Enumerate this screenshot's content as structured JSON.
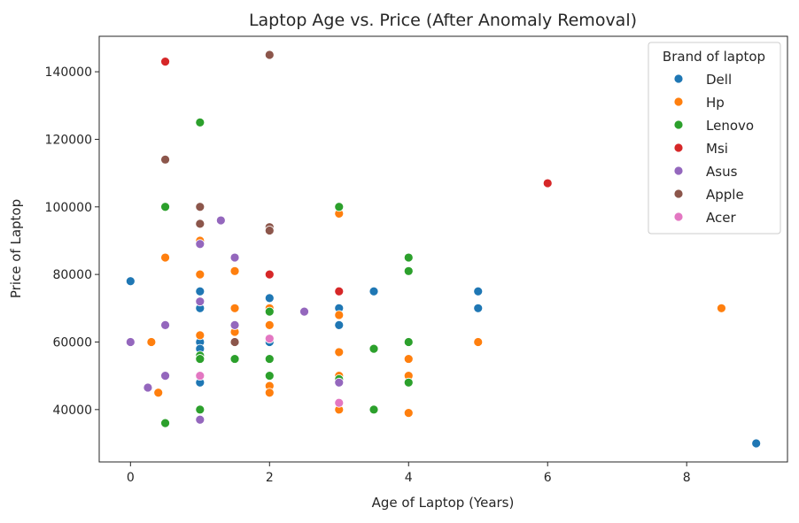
{
  "chart_data": {
    "type": "scatter",
    "title": "Laptop Age vs. Price (After Anomaly Removal)",
    "xlabel": "Age of Laptop (Years)",
    "ylabel": "Price of Laptop",
    "xlim": [
      -0.45,
      9.45
    ],
    "ylim": [
      24500,
      150500
    ],
    "xticks": [
      0,
      2,
      4,
      6,
      8
    ],
    "yticks": [
      40000,
      60000,
      80000,
      100000,
      120000,
      140000
    ],
    "grid": false,
    "legend": {
      "title": "Brand of laptop",
      "placement": "top-right"
    },
    "series": [
      {
        "name": "Dell",
        "color": "#1f77b4",
        "points": [
          [
            0,
            78000
          ],
          [
            1,
            75000
          ],
          [
            1,
            70000
          ],
          [
            1,
            60000
          ],
          [
            1,
            58000
          ],
          [
            1,
            48000
          ],
          [
            2,
            73000
          ],
          [
            2,
            60000
          ],
          [
            3,
            70000
          ],
          [
            3,
            65000
          ],
          [
            3.5,
            75000
          ],
          [
            5,
            75000
          ],
          [
            5,
            70000
          ],
          [
            9,
            30000
          ]
        ]
      },
      {
        "name": "Hp",
        "color": "#ff7f0e",
        "points": [
          [
            0.3,
            60000
          ],
          [
            0.4,
            45000
          ],
          [
            0.5,
            85000
          ],
          [
            1,
            90000
          ],
          [
            1,
            80000
          ],
          [
            1,
            62000
          ],
          [
            1.5,
            81000
          ],
          [
            1.5,
            70000
          ],
          [
            1.5,
            63000
          ],
          [
            2,
            70000
          ],
          [
            2,
            65000
          ],
          [
            2,
            47000
          ],
          [
            2,
            45000
          ],
          [
            3,
            98000
          ],
          [
            3,
            68000
          ],
          [
            3,
            57000
          ],
          [
            3,
            50000
          ],
          [
            3,
            40000
          ],
          [
            4,
            55000
          ],
          [
            4,
            50000
          ],
          [
            4,
            39000
          ],
          [
            5,
            60000
          ],
          [
            8.5,
            70000
          ]
        ]
      },
      {
        "name": "Lenovo",
        "color": "#2ca02c",
        "points": [
          [
            0.5,
            100000
          ],
          [
            0.5,
            36000
          ],
          [
            1,
            125000
          ],
          [
            1,
            56000
          ],
          [
            1,
            55000
          ],
          [
            1,
            40000
          ],
          [
            1.5,
            55000
          ],
          [
            2,
            69000
          ],
          [
            2,
            55000
          ],
          [
            2,
            50000
          ],
          [
            3,
            100000
          ],
          [
            3,
            49000
          ],
          [
            3.5,
            58000
          ],
          [
            3.5,
            40000
          ],
          [
            4,
            85000
          ],
          [
            4,
            81000
          ],
          [
            4,
            60000
          ],
          [
            4,
            48000
          ]
        ]
      },
      {
        "name": "Msi",
        "color": "#d62728",
        "points": [
          [
            0.5,
            143000
          ],
          [
            2,
            80000
          ],
          [
            3,
            75000
          ],
          [
            6,
            107000
          ]
        ]
      },
      {
        "name": "Asus",
        "color": "#9467bd",
        "points": [
          [
            0,
            60000
          ],
          [
            0.25,
            46500
          ],
          [
            0.5,
            65000
          ],
          [
            0.5,
            50000
          ],
          [
            1,
            89000
          ],
          [
            1,
            72000
          ],
          [
            1,
            37000
          ],
          [
            1.3,
            96000
          ],
          [
            1.5,
            85000
          ],
          [
            1.5,
            65000
          ],
          [
            2.5,
            69000
          ],
          [
            3,
            48000
          ]
        ]
      },
      {
        "name": "Apple",
        "color": "#8c564b",
        "points": [
          [
            0.5,
            114000
          ],
          [
            1,
            100000
          ],
          [
            1,
            95000
          ],
          [
            1.5,
            60000
          ],
          [
            2,
            145000
          ],
          [
            2,
            94000
          ],
          [
            2,
            93000
          ]
        ]
      },
      {
        "name": "Acer",
        "color": "#e377c2",
        "points": [
          [
            1,
            50000
          ],
          [
            2,
            61000
          ],
          [
            3,
            42000
          ]
        ]
      }
    ]
  }
}
